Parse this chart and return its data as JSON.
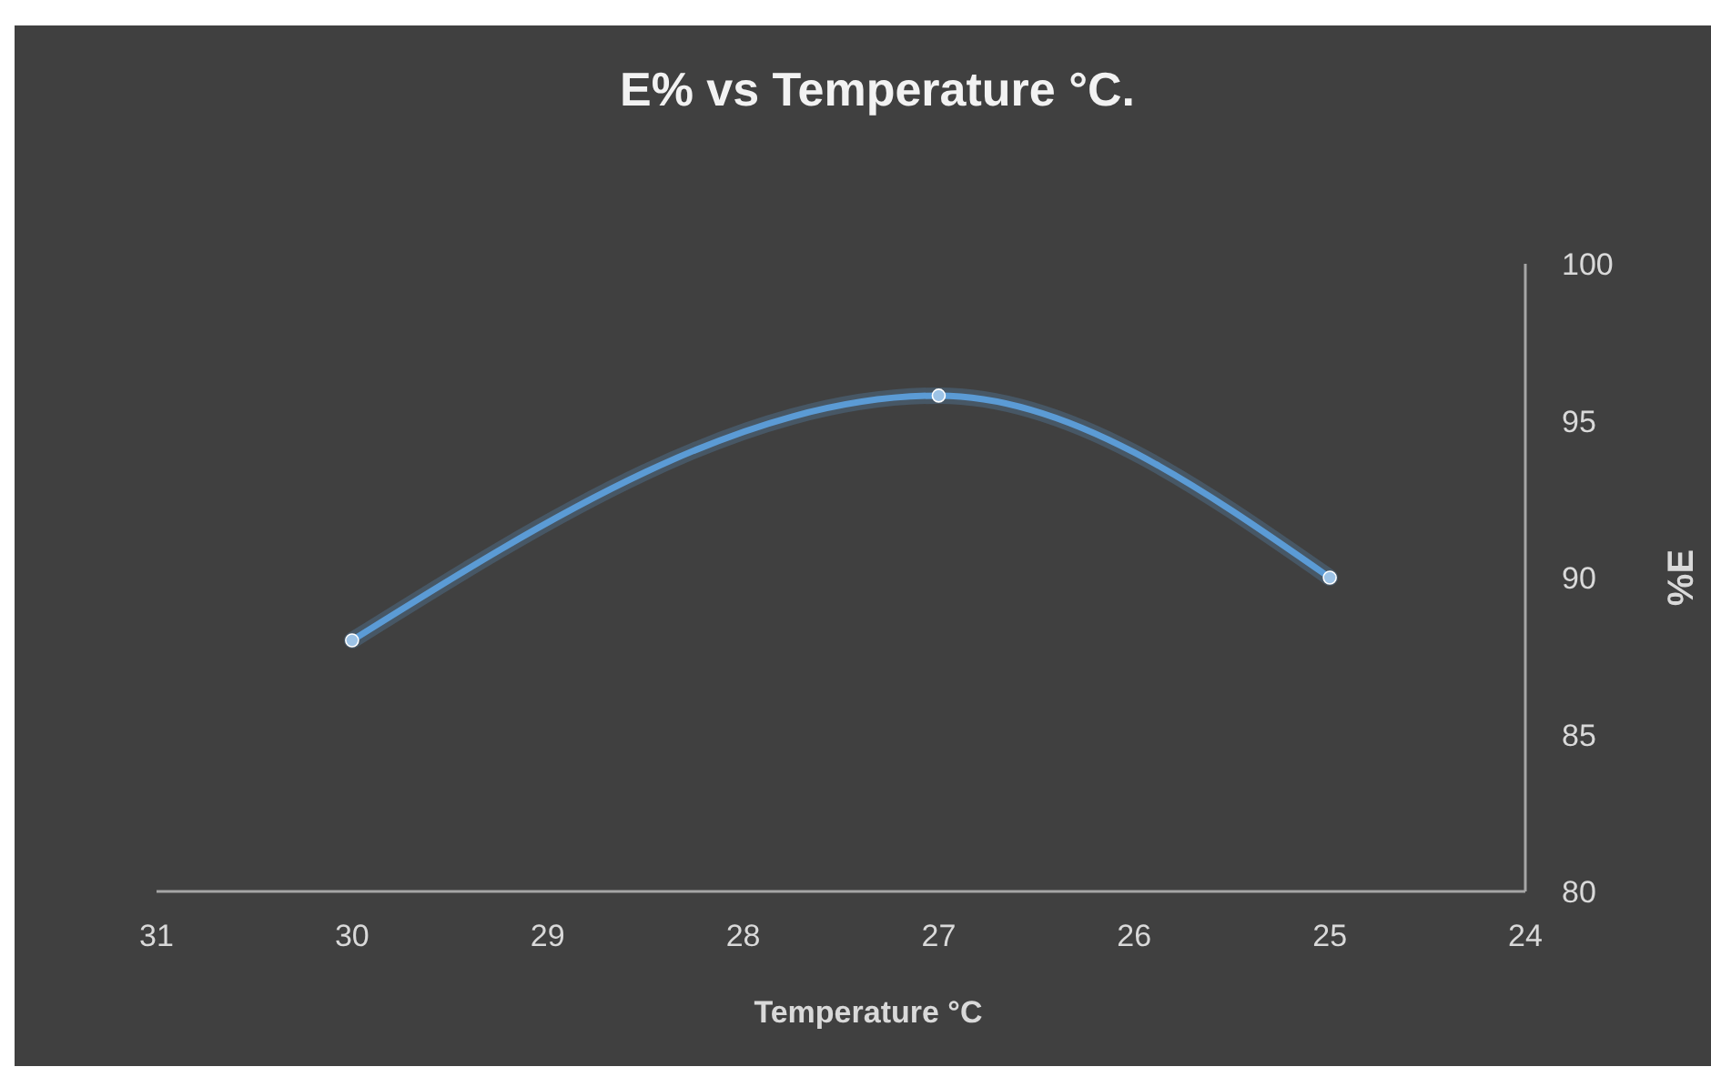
{
  "chart_data": {
    "type": "line",
    "title": "E% vs  Temperature  °C.",
    "xlabel": "Temperature  °C",
    "ylabel": "%E",
    "x": [
      30,
      27,
      25
    ],
    "series": [
      {
        "color": "#5b9bd5",
        "values": [
          88,
          95.8,
          90
        ]
      }
    ],
    "xlim": [
      31,
      24
    ],
    "xticks": [
      31,
      30,
      29,
      28,
      27,
      26,
      25,
      24
    ],
    "ylim": [
      80,
      100
    ],
    "yticks": [
      80,
      85,
      90,
      95,
      100
    ],
    "grid": false,
    "marker": "circle",
    "line_style": "solid"
  }
}
